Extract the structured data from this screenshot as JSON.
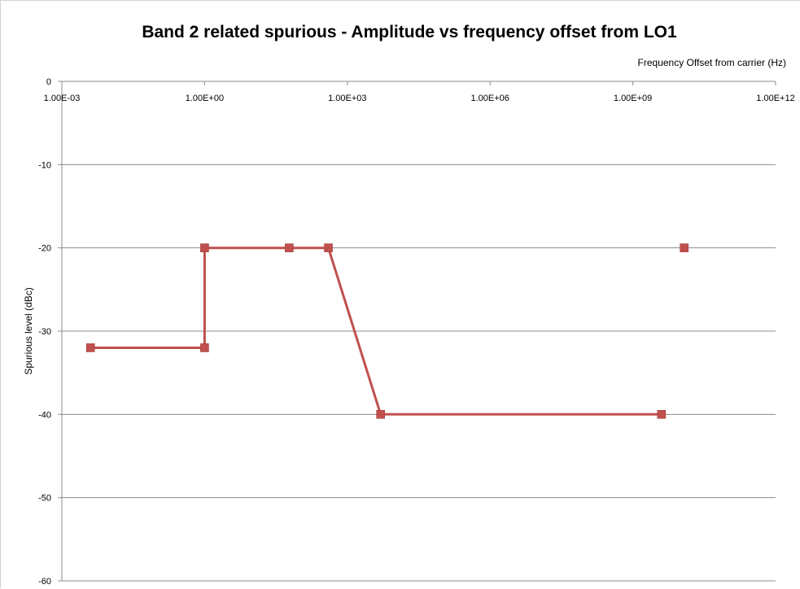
{
  "chart_data": {
    "type": "scatter",
    "title": "Band 2 related spurious - Amplitude vs frequency offset from LO1",
    "xlabel": "Frequency Offset from carrier (Hz)",
    "ylabel": "Spurious level (dBc)",
    "x_scale": "log",
    "xlim": [
      0.001,
      1000000000000
    ],
    "ylim": [
      -60,
      0
    ],
    "x_ticks": [
      0.001,
      1,
      1000,
      1000000,
      1000000000,
      1000000000000
    ],
    "x_tick_labels": [
      "1.00E-03",
      "1.00E+00",
      "1.00E+03",
      "1.00E+06",
      "1.00E+09",
      "1.00E+12"
    ],
    "y_ticks": [
      0,
      -10,
      -20,
      -30,
      -40,
      -50,
      -60
    ],
    "y_tick_labels": [
      "0",
      "-10",
      "-20",
      "-30",
      "-40",
      "-50",
      "-60"
    ],
    "x_axis_position": "top",
    "grid": "horizontal",
    "legend": "none",
    "series": [
      {
        "color": "#c0504d",
        "marker": "square",
        "points": [
          {
            "x": 0.004,
            "y": -32
          },
          {
            "x": 1,
            "y": -32
          },
          {
            "x": 1,
            "y": -20
          },
          {
            "x": 60,
            "y": -20
          },
          {
            "x": 400,
            "y": -20
          },
          {
            "x": 5000,
            "y": -40
          },
          {
            "x": 4000000000,
            "y": -40
          }
        ]
      },
      {
        "color": "#c0504d",
        "marker": "square",
        "points": [
          {
            "x": 12000000000,
            "y": -20
          }
        ]
      }
    ]
  }
}
